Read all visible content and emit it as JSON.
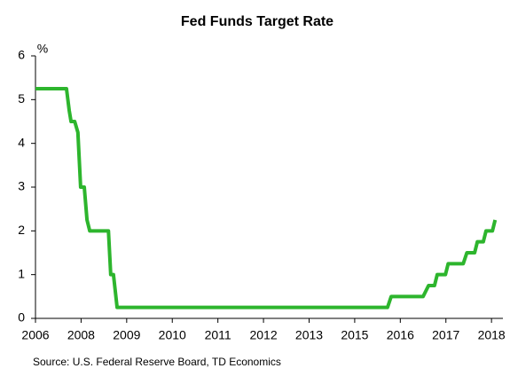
{
  "chart_data": {
    "type": "line",
    "title": "Fed Funds Target Rate",
    "ylabel": "%",
    "source": "Source: U.S. Federal Reserve Board, TD Economics",
    "x": [
      0,
      0.68,
      0.74,
      0.78,
      0.86,
      0.93,
      0.99,
      1.07,
      1.13,
      1.19,
      1.6,
      1.65,
      1.71,
      1.79,
      7.72,
      7.8,
      8.5,
      8.62,
      8.75,
      8.81,
      8.99,
      9.05,
      9.38,
      9.46,
      9.63,
      9.69,
      9.82,
      9.88,
      10.02,
      10.08
    ],
    "series": [
      {
        "name": "Fed Funds Target Rate",
        "color": "#2db52d",
        "values": [
          5.25,
          5.25,
          4.75,
          4.5,
          4.5,
          4.25,
          3.0,
          3.0,
          2.25,
          2.0,
          2.0,
          1.0,
          1.0,
          0.25,
          0.25,
          0.5,
          0.5,
          0.75,
          0.75,
          1.0,
          1.0,
          1.25,
          1.25,
          1.5,
          1.5,
          1.75,
          1.75,
          2.0,
          2.0,
          2.25
        ]
      }
    ],
    "xlim": [
      0,
      10.25
    ],
    "xticks": [
      {
        "value": 0,
        "label": "2006"
      },
      {
        "value": 1,
        "label": "2008"
      },
      {
        "value": 2,
        "label": "2009"
      },
      {
        "value": 3,
        "label": "2010"
      },
      {
        "value": 4,
        "label": "2011"
      },
      {
        "value": 5,
        "label": "2012"
      },
      {
        "value": 6,
        "label": "2013"
      },
      {
        "value": 7,
        "label": "2015"
      },
      {
        "value": 8,
        "label": "2016"
      },
      {
        "value": 9,
        "label": "2017"
      },
      {
        "value": 10,
        "label": "2018"
      }
    ],
    "ylim": [
      0,
      6
    ],
    "yticks": [
      0,
      1,
      2,
      3,
      4,
      5,
      6
    ],
    "grid": false
  }
}
